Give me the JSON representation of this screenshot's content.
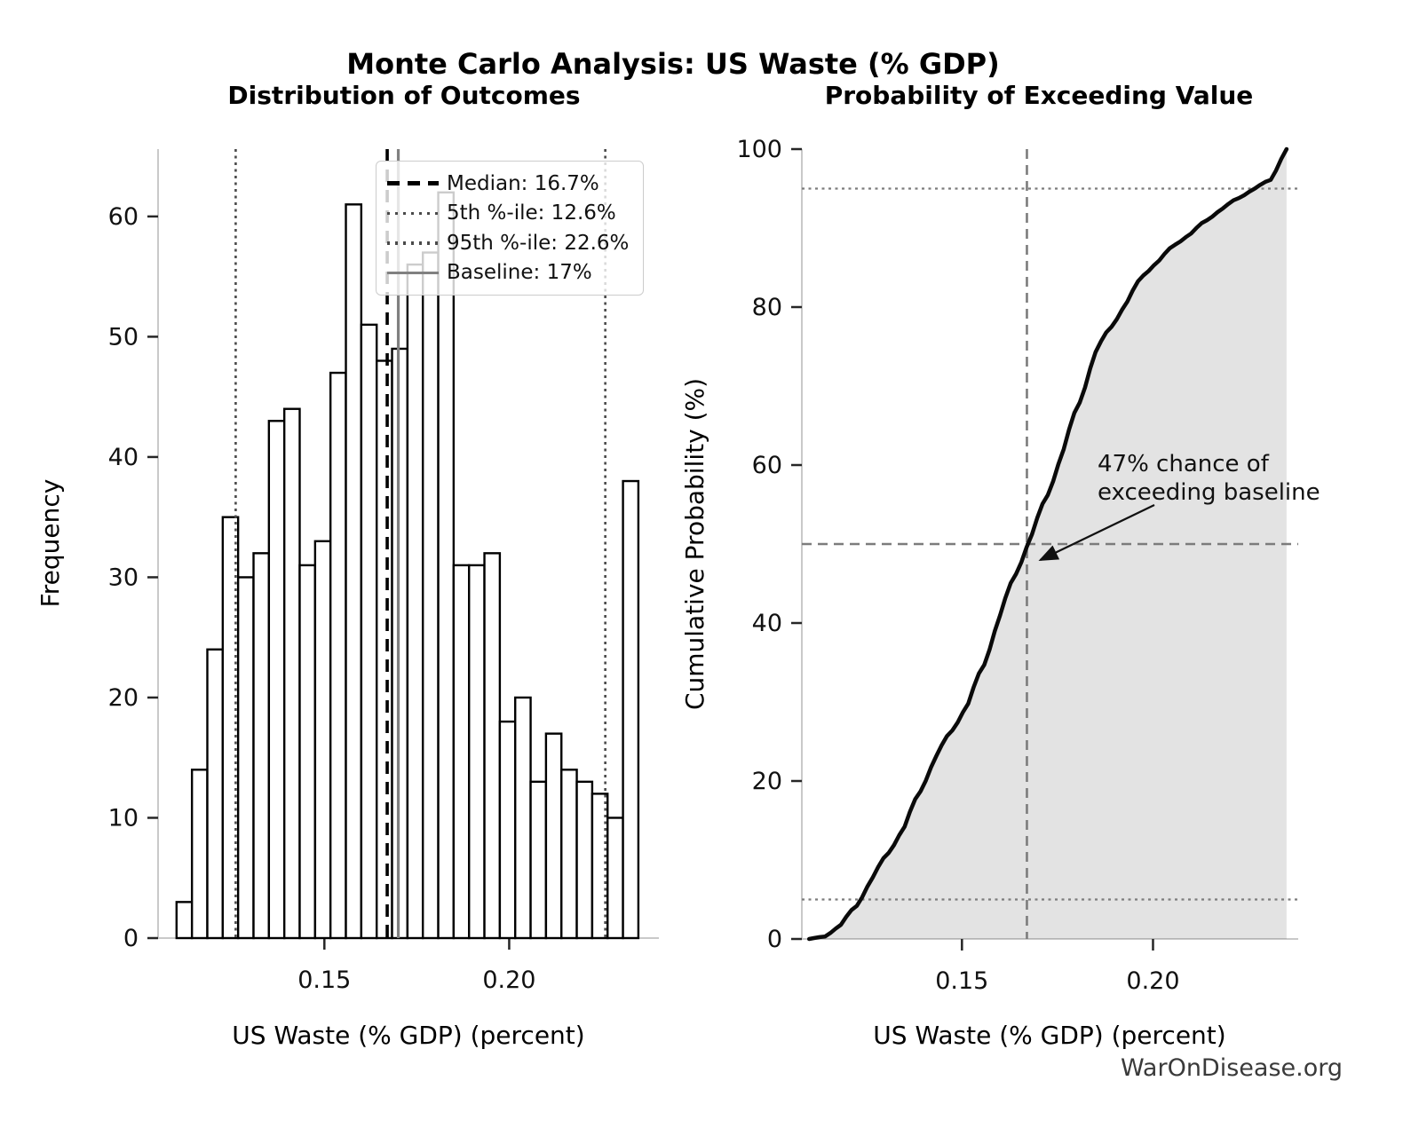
{
  "title": "Monte Carlo Analysis: US Waste (% GDP)",
  "watermark": "WarOnDisease.org",
  "colors": {
    "bar_fill": "#ffffff",
    "bar_edge": "#000000",
    "median_line": "#000000",
    "percentile_line": "#4a4a4a",
    "baseline_line": "#808080",
    "cdf_line": "#0a0a0a",
    "cdf_fill": "rgba(0,0,0,0.11)",
    "crosshair": "#7c7c7c",
    "spine": "#c9c9c9",
    "tick": "#262626"
  },
  "chart_data": [
    {
      "type": "bar",
      "subtype": "histogram",
      "title": "Distribution of Outcomes",
      "xlabel": "US Waste (% GDP) (percent)",
      "ylabel": "Frequency",
      "bin_edges": [
        0.11,
        0.11417,
        0.11833,
        0.1225,
        0.12666,
        0.13083,
        0.13499,
        0.13916,
        0.14332,
        0.14749,
        0.15165,
        0.15582,
        0.15998,
        0.16415,
        0.16831,
        0.17248,
        0.17664,
        0.18081,
        0.18497,
        0.18914,
        0.1933,
        0.19747,
        0.20163,
        0.2058,
        0.20996,
        0.21413,
        0.21829,
        0.22246,
        0.22662,
        0.23079,
        0.23495
      ],
      "frequencies": [
        3,
        14,
        24,
        35,
        30,
        32,
        43,
        44,
        31,
        33,
        47,
        61,
        51,
        48,
        49,
        56,
        57,
        62,
        31,
        31,
        32,
        18,
        20,
        13,
        17,
        14,
        13,
        12,
        10,
        38
      ],
      "xticks": {
        "values": [
          0.15,
          0.2
        ],
        "labels": [
          "0.15",
          "0.20"
        ]
      },
      "yticks": {
        "values": [
          0,
          10,
          20,
          30,
          40,
          50,
          60
        ],
        "labels": [
          "0",
          "10",
          "20",
          "30",
          "40",
          "50",
          "60"
        ]
      },
      "xlim": [
        0.105,
        0.2405
      ],
      "ylim": [
        0,
        65.6
      ],
      "grid": false,
      "vlines": [
        {
          "name": "median",
          "x": 0.167,
          "style": "dashed",
          "color": "#000000",
          "label": "Median: 16.7%"
        },
        {
          "name": "p5",
          "x": 0.126,
          "style": "dotted",
          "color": "#4a4a4a",
          "label": "5th %-ile: 12.6%"
        },
        {
          "name": "p95",
          "x": 0.226,
          "style": "dotted",
          "color": "#4a4a4a",
          "label": "95th %-ile: 22.6%"
        },
        {
          "name": "baseline",
          "x": 0.17,
          "style": "solid",
          "color": "#808080",
          "label": "Baseline: 17%"
        }
      ],
      "legend_position": "upper right",
      "stats": {
        "median": "16.7%",
        "p5": "12.6%",
        "p95": "22.6%",
        "baseline": "17%"
      }
    },
    {
      "type": "line",
      "subtype": "empirical-cdf",
      "title": "Probability of Exceeding Value",
      "xlabel": "US Waste (% GDP) (percent)",
      "ylabel": "Cumulative Probability (%)",
      "x": [
        0.11,
        0.11417,
        0.11833,
        0.1225,
        0.12666,
        0.13083,
        0.13499,
        0.13916,
        0.14332,
        0.14749,
        0.15165,
        0.15582,
        0.15998,
        0.16415,
        0.16831,
        0.17248,
        0.17664,
        0.18081,
        0.18497,
        0.18914,
        0.1933,
        0.19747,
        0.20163,
        0.2058,
        0.20996,
        0.21413,
        0.21829,
        0.22246,
        0.22662,
        0.23079,
        0.23495
      ],
      "y": [
        0,
        0.3,
        1.8,
        4.2,
        7.8,
        10.9,
        14.2,
        18.7,
        23.2,
        26.4,
        29.8,
        34.7,
        41.0,
        46.2,
        51.2,
        56.2,
        62.0,
        67.9,
        74.3,
        77.5,
        80.7,
        84.0,
        85.9,
        87.9,
        89.3,
        91.0,
        92.5,
        93.8,
        95.0,
        96.1,
        100
      ],
      "xticks": {
        "values": [
          0.15,
          0.2
        ],
        "labels": [
          "0.15",
          "0.20"
        ]
      },
      "yticks": {
        "values": [
          0,
          20,
          40,
          60,
          80,
          100
        ],
        "labels": [
          "0",
          "20",
          "40",
          "60",
          "80",
          "100"
        ]
      },
      "xlim": [
        0.1081,
        0.238
      ],
      "ylim": [
        0,
        100
      ],
      "fill_under": true,
      "hlines": [
        {
          "y": 5,
          "style": "dotted"
        },
        {
          "y": 50,
          "style": "dashed"
        },
        {
          "y": 95,
          "style": "dotted"
        }
      ],
      "vlines": [
        {
          "x": 0.167,
          "style": "dashed"
        }
      ],
      "annotation": {
        "line1": "47% chance of",
        "line2": "exceeding baseline",
        "arrow_target_x": 0.167,
        "arrow_target_y": 50
      }
    }
  ]
}
